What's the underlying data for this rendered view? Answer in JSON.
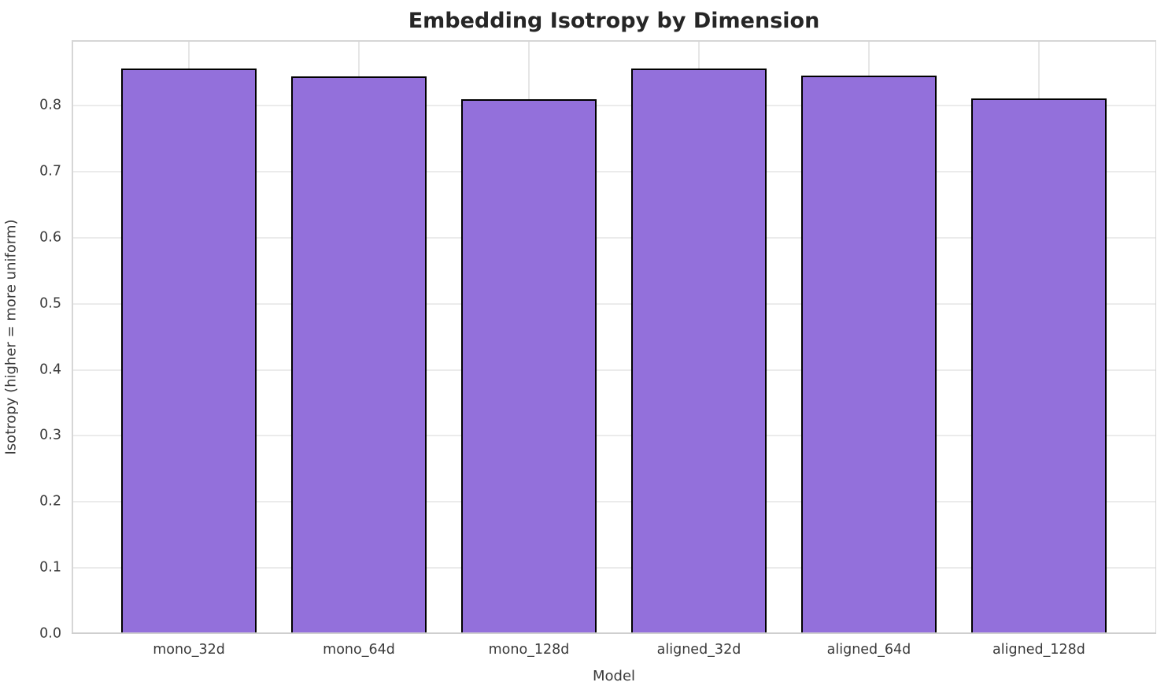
{
  "figure": {
    "background_color": "#ffffff",
    "text_color": "#3a3a3a",
    "title_color": "#262626",
    "grid_color": "#e8e8e8",
    "spine_color": "#d6d6d6"
  },
  "chart_data": {
    "type": "bar",
    "title": "Embedding Isotropy by Dimension",
    "xlabel": "Model",
    "ylabel": "Isotropy (higher = more uniform)",
    "categories": [
      "mono_32d",
      "mono_64d",
      "mono_128d",
      "aligned_32d",
      "aligned_64d",
      "aligned_128d"
    ],
    "values": [
      0.856,
      0.844,
      0.81,
      0.856,
      0.845,
      0.811
    ],
    "ylim": [
      0,
      0.899
    ],
    "yticks": [
      "0.0",
      "0.1",
      "0.2",
      "0.3",
      "0.4",
      "0.5",
      "0.6",
      "0.7",
      "0.8"
    ],
    "grid": "on",
    "legend": "none",
    "bar_color": "#9370DB",
    "bar_edge_color": "#000000"
  }
}
